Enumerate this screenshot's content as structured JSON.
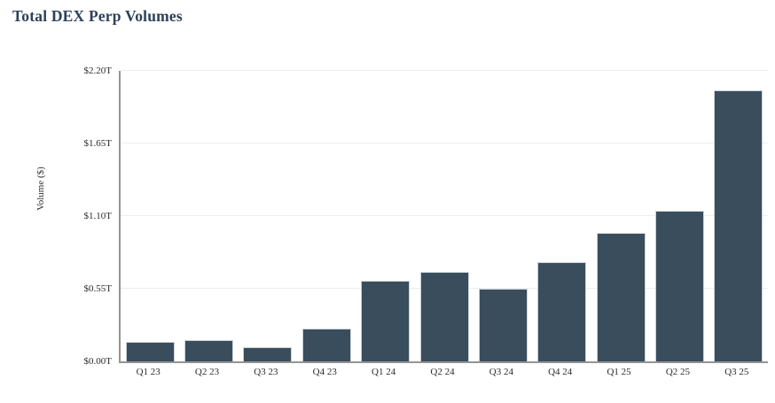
{
  "chart_data": {
    "type": "bar",
    "title": "Total DEX Perp Volumes",
    "xlabel": "",
    "ylabel": "Volume ($)",
    "categories": [
      "Q1 23",
      "Q2 23",
      "Q3 23",
      "Q4 23",
      "Q1 24",
      "Q2 24",
      "Q3 24",
      "Q4 24",
      "Q1 25",
      "Q2 25",
      "Q3 25"
    ],
    "values": [
      0.15,
      0.16,
      0.11,
      0.25,
      0.61,
      0.68,
      0.55,
      0.75,
      0.97,
      1.14,
      2.05
    ],
    "unit": "T",
    "ylim": [
      0,
      2.2
    ],
    "y_ticks": [
      0,
      0.55,
      1.1,
      1.65,
      2.2
    ],
    "y_tick_labels": [
      "$0.00T",
      "$0.55T",
      "$1.10T",
      "$1.65T",
      "$2.20T"
    ],
    "grid": true,
    "legend_position": "none",
    "colors": {
      "bar_fill": "#3a4d5c",
      "bar_border": "#c9d3da",
      "grid": "#ededed",
      "axis": "#949494",
      "title": "#2d415a",
      "tick_text": "#2b2b2b"
    }
  }
}
